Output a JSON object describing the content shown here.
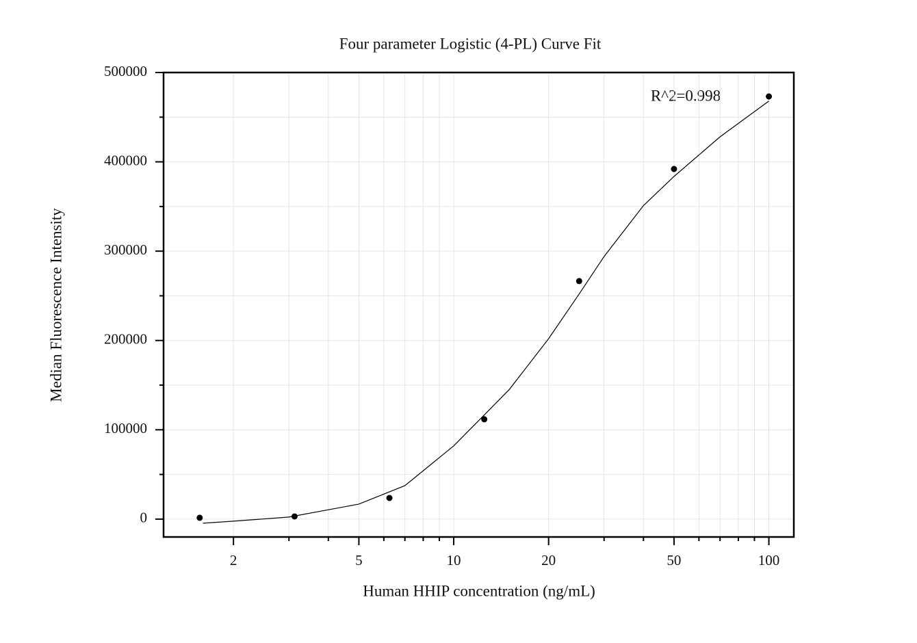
{
  "chart_data": {
    "type": "scatter",
    "title": "Four parameter Logistic (4-PL) Curve Fit",
    "x_label": "Human HHIP concentration (ng/mL)",
    "y_label": "Median Fluorescence Intensity",
    "annotation": "R^2=0.998",
    "xscale": "log",
    "xlim": [
      1.2,
      120
    ],
    "xticks": [
      2,
      5,
      10,
      20,
      50,
      100
    ],
    "xminor_ticks": [
      3,
      4,
      6,
      7,
      8,
      9,
      30,
      40,
      60,
      70,
      80,
      90
    ],
    "ylim": [
      -20000,
      500000
    ],
    "yticks": [
      0,
      100000,
      200000,
      300000,
      400000,
      500000
    ],
    "yminor_ticks": [
      50000,
      150000,
      250000,
      350000,
      450000
    ],
    "grid": true,
    "series": [
      {
        "style": "markers",
        "color": "#000000",
        "x": [
          1.5625,
          3.125,
          6.25,
          12.5,
          25,
          50,
          100
        ],
        "values": [
          1500,
          3000,
          23700,
          111800,
          266500,
          392000,
          473200
        ]
      },
      {
        "style": "line",
        "color": "#000000",
        "x": [
          1.6,
          2,
          3,
          5,
          7,
          10,
          15,
          20,
          25,
          30,
          40,
          50,
          70,
          100
        ],
        "values": [
          -4600,
          -2300,
          2300,
          16800,
          37500,
          82000,
          145000,
          202000,
          252000,
          294000,
          351000,
          383600,
          428000,
          468000
        ]
      }
    ]
  }
}
